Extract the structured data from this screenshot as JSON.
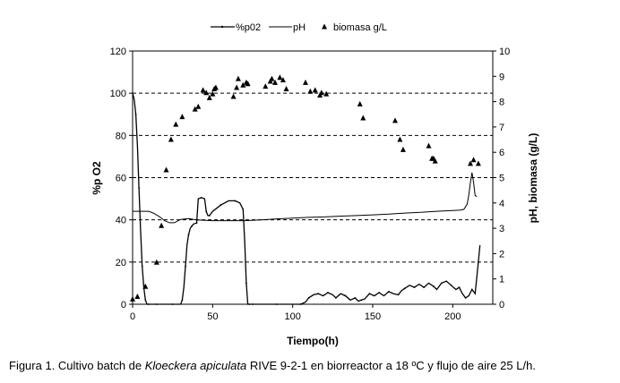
{
  "chart_data": {
    "type": "line",
    "legend": {
      "position": "top",
      "entries": [
        {
          "label": "%p02",
          "marker": "line-with-dots"
        },
        {
          "label": "pH",
          "marker": "line"
        },
        {
          "label": "biomasa g/L",
          "marker": "triangle"
        }
      ]
    },
    "xlabel": "Tiempo(h)",
    "ylabel_left": "%p O2",
    "ylabel_right": "pH, biomasa (g/L)",
    "xlim": [
      0,
      225
    ],
    "ylim_left": [
      0,
      120
    ],
    "ylim_right": [
      0,
      10
    ],
    "x_ticks": [
      "0",
      "50",
      "100",
      "150",
      "200"
    ],
    "y_left_ticks": [
      "0",
      "20",
      "40",
      "60",
      "80",
      "100",
      "120"
    ],
    "y_right_ticks": [
      "0",
      "1",
      "2",
      "3",
      "4",
      "5",
      "6",
      "7",
      "8",
      "9",
      "10"
    ],
    "gridlines": "dashed horizontal at 20, 40, 60, 80, 100",
    "series": [
      {
        "name": "%p02",
        "axis": "left",
        "x": [
          0,
          1,
          2,
          3,
          4,
          5,
          6,
          7,
          8,
          9,
          10,
          12,
          15,
          20,
          25,
          30,
          31,
          32,
          33,
          34,
          35,
          36,
          37,
          38,
          40,
          41,
          43,
          45,
          46,
          47,
          48,
          50,
          55,
          60,
          64,
          67,
          69,
          70,
          71,
          72,
          73,
          74,
          75,
          80,
          90,
          100,
          105,
          108,
          110,
          113,
          116,
          119,
          122,
          125,
          127,
          130,
          133,
          136,
          139,
          141,
          143,
          145,
          148,
          151,
          154,
          157,
          160,
          163,
          166,
          168,
          170,
          173,
          176,
          179,
          182,
          185,
          188,
          190,
          193,
          196,
          199,
          202,
          204,
          206,
          208,
          210,
          212,
          214,
          216,
          217
        ],
        "y": [
          100,
          97,
          90,
          75,
          55,
          35,
          18,
          8,
          2,
          0,
          0,
          0,
          0,
          0,
          0,
          0,
          2,
          8,
          18,
          28,
          33,
          36,
          37,
          38,
          38.5,
          50,
          50.5,
          50,
          44,
          42,
          42,
          44,
          47,
          49,
          49,
          48,
          45,
          30,
          10,
          0,
          0,
          0,
          0,
          0,
          0,
          0,
          0,
          1,
          3,
          4.5,
          5,
          4,
          5.5,
          4.5,
          3,
          5,
          4,
          2,
          3,
          1.5,
          2,
          2.5,
          5,
          4,
          5.5,
          4,
          6,
          5,
          4.5,
          6.5,
          7.5,
          9,
          8,
          9.5,
          8,
          10,
          8.5,
          7,
          10,
          11,
          9,
          7,
          8,
          5,
          3,
          4,
          7,
          5,
          20,
          28
        ]
      },
      {
        "name": "pH",
        "axis": "right",
        "x": [
          0,
          5,
          10,
          13,
          17,
          20,
          23,
          26,
          30,
          35,
          40,
          50,
          60,
          70,
          80,
          90,
          100,
          110,
          120,
          130,
          140,
          150,
          160,
          170,
          180,
          190,
          200,
          205,
          207,
          209,
          210,
          211,
          212,
          213,
          214,
          215
        ],
        "y": [
          3.67,
          3.67,
          3.67,
          3.6,
          3.45,
          3.3,
          3.22,
          3.22,
          3.35,
          3.38,
          3.33,
          3.3,
          3.3,
          3.3,
          3.33,
          3.37,
          3.4,
          3.43,
          3.45,
          3.48,
          3.5,
          3.53,
          3.56,
          3.6,
          3.63,
          3.67,
          3.7,
          3.72,
          3.75,
          3.95,
          4.3,
          4.8,
          5.2,
          4.8,
          4.3,
          4.25
        ]
      },
      {
        "name": "biomasa g/L",
        "axis": "right",
        "x": [
          0,
          3,
          8,
          15,
          18,
          21,
          24,
          27,
          31,
          39,
          41,
          44,
          46,
          48,
          50,
          51,
          52,
          63,
          65,
          66,
          69,
          71,
          72,
          83,
          86,
          87,
          89,
          92,
          94,
          96,
          108,
          111,
          114,
          117,
          118,
          121,
          142,
          144,
          164,
          167,
          169,
          185,
          187,
          188,
          189,
          211,
          213,
          216
        ],
        "y": [
          0.2,
          0.3,
          0.7,
          1.65,
          3.1,
          5.3,
          6.5,
          7.1,
          7.4,
          7.7,
          7.8,
          8.45,
          8.35,
          8.15,
          8.3,
          8.5,
          8.55,
          8.2,
          8.55,
          8.9,
          8.65,
          8.75,
          8.7,
          8.6,
          8.8,
          8.9,
          8.75,
          8.95,
          8.85,
          8.5,
          8.75,
          8.4,
          8.45,
          8.25,
          8.35,
          8.3,
          7.9,
          7.35,
          7.25,
          6.5,
          6.1,
          6.25,
          5.75,
          5.75,
          5.65,
          5.55,
          5.7,
          5.55
        ]
      }
    ]
  },
  "caption": {
    "prefix": "Figura 1. Cultivo batch de ",
    "species": "Kloeckera apiculata",
    "suffix": " RIVE 9-2-1 en biorreactor a 18 ºC y flujo de aire 25 L/h."
  }
}
